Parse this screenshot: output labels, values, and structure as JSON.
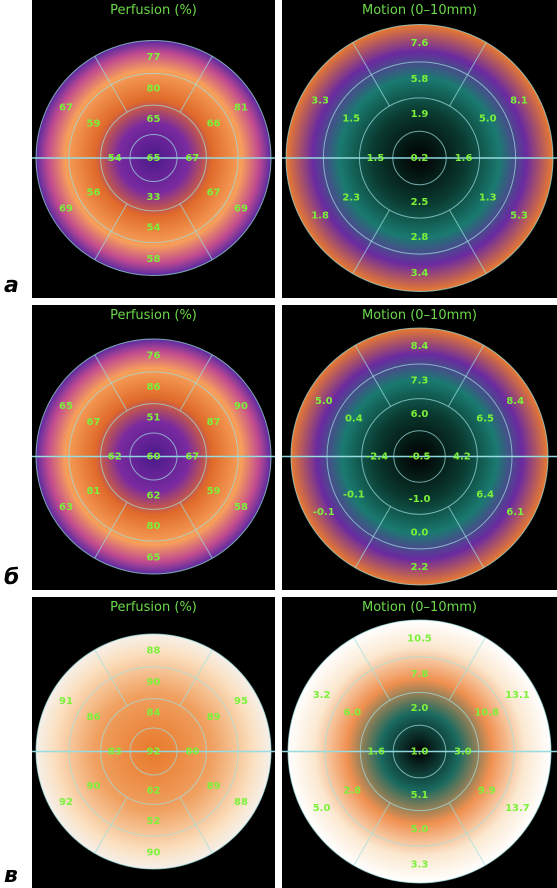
{
  "panels": [
    {
      "letter": "а",
      "left": {
        "title": "Perfusion (%)",
        "segments": [
          "77",
          "81",
          "69",
          "58",
          "69",
          "67",
          "80",
          "66",
          "67",
          "54",
          "56",
          "59",
          "65",
          "67",
          "33",
          "54",
          "65"
        ]
      },
      "right": {
        "title": "Motion (0–10mm)",
        "segments": [
          "7.6",
          "8.1",
          "5.3",
          "3.4",
          "1.8",
          "3.3",
          "5.8",
          "5.0",
          "1.3",
          "2.8",
          "2.3",
          "1.5",
          "1.9",
          "1.6",
          "2.5",
          "1.5",
          "0.2"
        ]
      }
    },
    {
      "letter": "б",
      "left": {
        "title": "Perfusion (%)",
        "segments": [
          "76",
          "90",
          "58",
          "65",
          "63",
          "65",
          "86",
          "87",
          "59",
          "80",
          "81",
          "67",
          "51",
          "67",
          "62",
          "62",
          "60"
        ]
      },
      "right": {
        "title": "Motion (0–10mm)",
        "segments": [
          "8.4",
          "8.4",
          "6.1",
          "2.2",
          "-0.1",
          "5.0",
          "7.3",
          "6.5",
          "6.4",
          "0.0",
          "-0.1",
          "0.4",
          "6.0",
          "4.2",
          "-1.0",
          "-2.4",
          "-0.5"
        ]
      }
    },
    {
      "letter": "в",
      "left": {
        "title": "Perfusion (%)",
        "segments": [
          "88",
          "95",
          "88",
          "90",
          "92",
          "91",
          "90",
          "89",
          "89",
          "52",
          "90",
          "86",
          "84",
          "80",
          "62",
          "83",
          "92"
        ]
      },
      "right": {
        "title": "Motion (0–10mm)",
        "segments": [
          "10.5",
          "13.1",
          "13.7",
          "3.3",
          "5.0",
          "3.2",
          "7.8",
          "10.8",
          "9.9",
          "5.0",
          "2.8",
          "6.0",
          "2.0",
          "3.0",
          "5.1",
          "1.6",
          "1.0"
        ]
      }
    }
  ]
}
